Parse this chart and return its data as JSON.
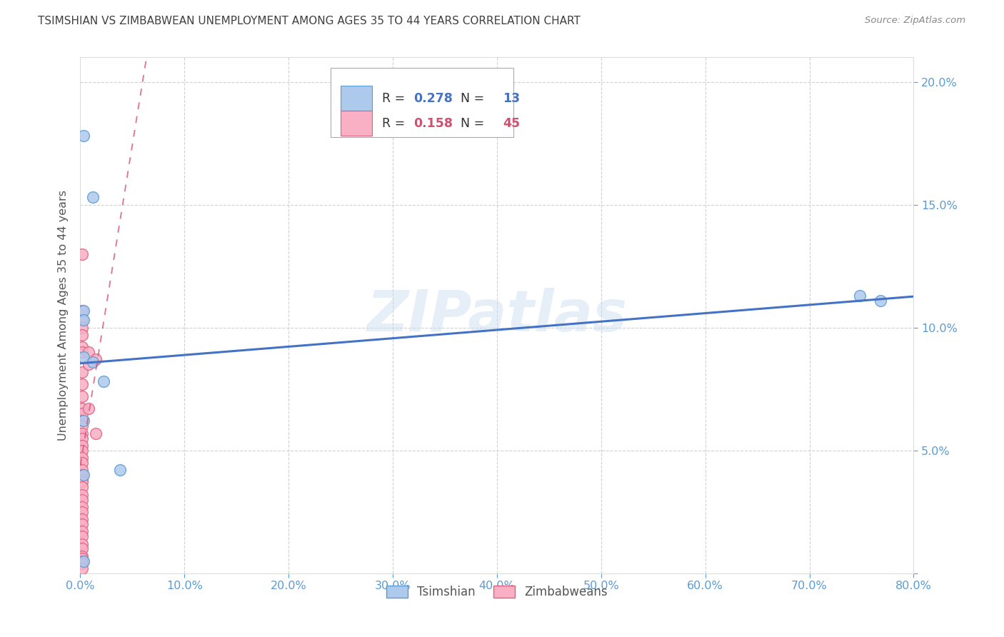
{
  "title": "TSIMSHIAN VS ZIMBABWEAN UNEMPLOYMENT AMONG AGES 35 TO 44 YEARS CORRELATION CHART",
  "source": "Source: ZipAtlas.com",
  "ylabel": "Unemployment Among Ages 35 to 44 years",
  "xlim": [
    0,
    0.8
  ],
  "ylim": [
    0,
    0.21
  ],
  "xticks": [
    0.0,
    0.1,
    0.2,
    0.3,
    0.4,
    0.5,
    0.6,
    0.7,
    0.8
  ],
  "yticks": [
    0.0,
    0.05,
    0.1,
    0.15,
    0.2
  ],
  "tsimshian_x": [
    0.003,
    0.012,
    0.003,
    0.003,
    0.003,
    0.012,
    0.022,
    0.003,
    0.038,
    0.003,
    0.748,
    0.768,
    0.003
  ],
  "tsimshian_y": [
    0.178,
    0.153,
    0.107,
    0.103,
    0.088,
    0.086,
    0.078,
    0.062,
    0.042,
    0.04,
    0.113,
    0.111,
    0.005
  ],
  "zimbabwean_x": [
    0.002,
    0.002,
    0.002,
    0.002,
    0.002,
    0.002,
    0.002,
    0.002,
    0.002,
    0.002,
    0.002,
    0.002,
    0.002,
    0.002,
    0.002,
    0.002,
    0.002,
    0.002,
    0.002,
    0.002,
    0.002,
    0.002,
    0.002,
    0.002,
    0.002,
    0.002,
    0.002,
    0.002,
    0.002,
    0.002,
    0.002,
    0.002,
    0.002,
    0.002,
    0.002,
    0.002,
    0.002,
    0.002,
    0.002,
    0.002,
    0.008,
    0.008,
    0.008,
    0.015,
    0.015
  ],
  "zimbabwean_y": [
    0.13,
    0.107,
    0.103,
    0.1,
    0.097,
    0.092,
    0.09,
    0.082,
    0.077,
    0.072,
    0.067,
    0.065,
    0.062,
    0.06,
    0.057,
    0.055,
    0.052,
    0.05,
    0.047,
    0.045,
    0.042,
    0.04,
    0.038,
    0.037,
    0.035,
    0.032,
    0.03,
    0.027,
    0.025,
    0.022,
    0.02,
    0.017,
    0.015,
    0.012,
    0.01,
    0.007,
    0.006,
    0.005,
    0.004,
    0.002,
    0.09,
    0.085,
    0.067,
    0.087,
    0.057
  ],
  "tsimshian_color": "#adc9ec",
  "tsimshian_edge_color": "#5b9bd5",
  "zimbabwean_color": "#f9afc4",
  "zimbabwean_edge_color": "#e06080",
  "tsimshian_R": 0.278,
  "tsimshian_N": 13,
  "zimbabwean_R": 0.158,
  "zimbabwean_N": 45,
  "regression_blue_color": "#4472c4",
  "regression_pink_color": "#d05070",
  "marker_size": 130,
  "background_color": "#ffffff",
  "grid_color": "#cccccc",
  "tick_color": "#5b9bd5",
  "title_color": "#404040",
  "ylabel_color": "#555555",
  "watermark_color": "#c8ddf0",
  "watermark_alpha": 0.45
}
